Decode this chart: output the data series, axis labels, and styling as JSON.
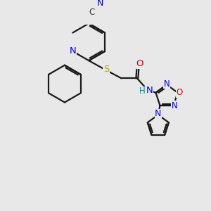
{
  "bg_color": "#e8e8e8",
  "bond_color": "#1a1a1a",
  "bond_width": 1.6,
  "atom_colors": {
    "C": "#3a3a3a",
    "N": "#0000ee",
    "O": "#dd0000",
    "S": "#aaaa00",
    "H": "#008888"
  },
  "font_size": 8.5
}
